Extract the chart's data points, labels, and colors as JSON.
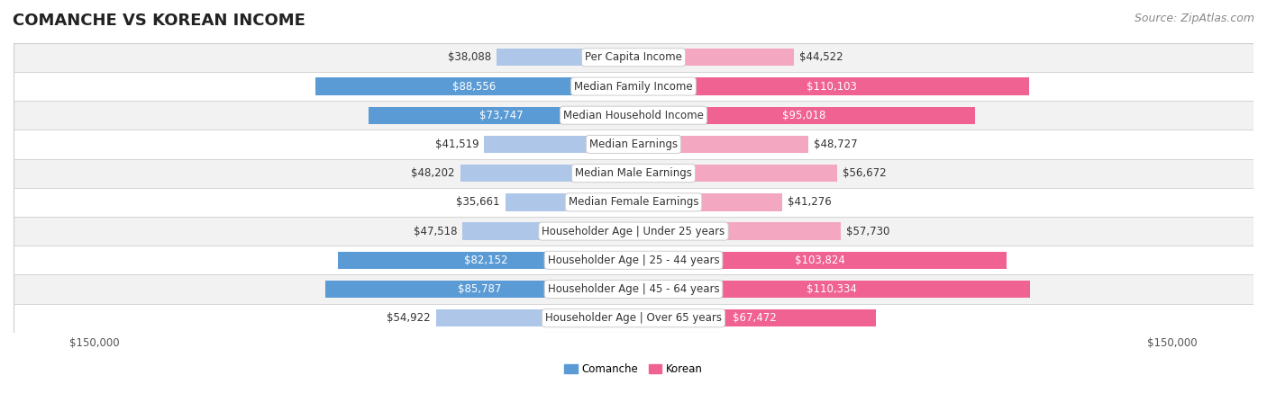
{
  "title": "COMANCHE VS KOREAN INCOME",
  "source": "Source: ZipAtlas.com",
  "categories": [
    "Per Capita Income",
    "Median Family Income",
    "Median Household Income",
    "Median Earnings",
    "Median Male Earnings",
    "Median Female Earnings",
    "Householder Age | Under 25 years",
    "Householder Age | 25 - 44 years",
    "Householder Age | 45 - 64 years",
    "Householder Age | Over 65 years"
  ],
  "comanche_values": [
    38088,
    88556,
    73747,
    41519,
    48202,
    35661,
    47518,
    82152,
    85787,
    54922
  ],
  "korean_values": [
    44522,
    110103,
    95018,
    48727,
    56672,
    41276,
    57730,
    103824,
    110334,
    67472
  ],
  "comanche_labels": [
    "$38,088",
    "$88,556",
    "$73,747",
    "$41,519",
    "$48,202",
    "$35,661",
    "$47,518",
    "$82,152",
    "$85,787",
    "$54,922"
  ],
  "korean_labels": [
    "$44,522",
    "$110,103",
    "$95,018",
    "$48,727",
    "$56,672",
    "$41,276",
    "$57,730",
    "$103,824",
    "$110,334",
    "$67,472"
  ],
  "max_value": 150000,
  "comanche_color_strong": "#5b9bd5",
  "comanche_color_light": "#aec6e8",
  "korean_color_strong": "#f06292",
  "korean_color_light": "#f4a7c0",
  "background_color": "#ffffff",
  "row_bg_color": "#f2f2f2",
  "row_bg_alt": "#ffffff",
  "label_inside_threshold": 60000,
  "title_fontsize": 13,
  "source_fontsize": 9,
  "bar_label_fontsize": 8.5,
  "category_fontsize": 8.5,
  "axis_label_fontsize": 8.5
}
